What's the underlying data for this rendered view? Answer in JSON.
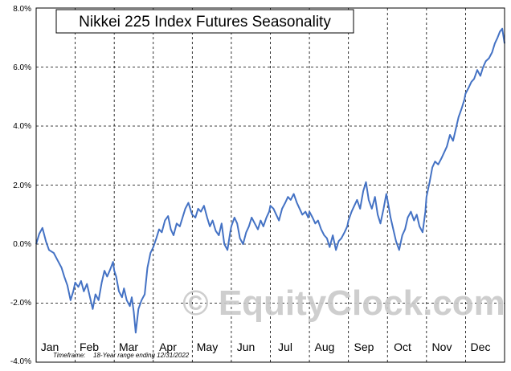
{
  "chart_data": {
    "type": "line",
    "title": "Nikkei 225 Index Futures Seasonality",
    "xlabel": "",
    "ylabel": "",
    "ylim": [
      -4.0,
      8.0
    ],
    "y_ticks": [
      "8.0%",
      "6.0%",
      "4.0%",
      "2.0%",
      "0.0%",
      "-2.0%",
      "-4.0%"
    ],
    "y_tick_values": [
      8,
      6,
      4,
      2,
      0,
      -2,
      -4
    ],
    "month_labels": [
      "Jan",
      "Feb",
      "Mar",
      "Apr",
      "May",
      "Jun",
      "Jul",
      "Aug",
      "Sep",
      "Oct",
      "Nov",
      "Dec"
    ],
    "grid": true,
    "footnote_label": "Timeframe:",
    "footnote_text": "18-Year range ending 12/31/2022",
    "watermark": "© EquityClock.com",
    "series": [
      {
        "color": "#4472c4",
        "x": [
          0,
          0.08,
          0.16,
          0.25,
          0.33,
          0.45,
          0.55,
          0.65,
          0.72,
          0.8,
          0.88,
          0.95,
          1.0,
          1.08,
          1.15,
          1.22,
          1.3,
          1.38,
          1.45,
          1.52,
          1.6,
          1.68,
          1.75,
          1.82,
          1.9,
          1.97,
          2.0,
          2.05,
          2.12,
          2.2,
          2.25,
          2.32,
          2.4,
          2.45,
          2.5,
          2.55,
          2.62,
          2.7,
          2.78,
          2.85,
          2.93,
          3.0,
          3.08,
          3.15,
          3.22,
          3.3,
          3.38,
          3.45,
          3.52,
          3.6,
          3.68,
          3.75,
          3.82,
          3.9,
          3.97,
          4.0,
          4.08,
          4.15,
          4.22,
          4.3,
          4.38,
          4.45,
          4.52,
          4.6,
          4.68,
          4.75,
          4.82,
          4.9,
          4.97,
          5.0,
          5.08,
          5.15,
          5.22,
          5.3,
          5.38,
          5.45,
          5.52,
          5.6,
          5.68,
          5.75,
          5.82,
          5.9,
          5.97,
          6.0,
          6.08,
          6.15,
          6.22,
          6.3,
          6.38,
          6.45,
          6.52,
          6.6,
          6.68,
          6.75,
          6.82,
          6.9,
          6.97,
          7.0,
          7.08,
          7.15,
          7.22,
          7.3,
          7.38,
          7.45,
          7.52,
          7.6,
          7.68,
          7.75,
          7.82,
          7.9,
          7.97,
          8.0,
          8.08,
          8.15,
          8.22,
          8.3,
          8.38,
          8.45,
          8.52,
          8.6,
          8.68,
          8.75,
          8.82,
          8.9,
          8.97,
          9.0,
          9.08,
          9.15,
          9.22,
          9.3,
          9.38,
          9.45,
          9.52,
          9.6,
          9.68,
          9.75,
          9.82,
          9.9,
          9.97,
          10.0,
          10.08,
          10.15,
          10.22,
          10.3,
          10.38,
          10.45,
          10.52,
          10.6,
          10.68,
          10.75,
          10.82,
          10.9,
          10.97,
          11.0,
          11.08,
          11.15,
          11.22,
          11.3,
          11.38,
          11.45,
          11.52,
          11.6,
          11.68,
          11.75,
          11.82,
          11.88,
          11.94,
          12.0
        ],
        "values": [
          0.0,
          0.35,
          0.55,
          0.1,
          -0.2,
          -0.3,
          -0.55,
          -0.8,
          -1.1,
          -1.4,
          -1.9,
          -1.6,
          -1.3,
          -1.45,
          -1.25,
          -1.6,
          -1.35,
          -1.8,
          -2.2,
          -1.7,
          -1.9,
          -1.3,
          -0.9,
          -1.1,
          -0.85,
          -0.6,
          -0.9,
          -1.1,
          -1.6,
          -1.8,
          -1.5,
          -1.9,
          -2.1,
          -1.8,
          -2.3,
          -3.0,
          -2.2,
          -1.9,
          -1.7,
          -0.8,
          -0.3,
          -0.1,
          0.2,
          0.5,
          0.4,
          0.8,
          0.95,
          0.5,
          0.3,
          0.7,
          0.6,
          0.9,
          1.2,
          1.4,
          1.1,
          1.0,
          0.9,
          1.2,
          1.1,
          1.3,
          0.9,
          0.6,
          0.8,
          0.45,
          0.3,
          0.7,
          0.0,
          -0.2,
          0.4,
          0.6,
          0.9,
          0.7,
          0.2,
          0.0,
          0.4,
          0.6,
          0.9,
          0.7,
          0.5,
          0.8,
          0.6,
          0.9,
          1.1,
          1.3,
          1.2,
          1.0,
          0.8,
          1.2,
          1.4,
          1.6,
          1.5,
          1.7,
          1.4,
          1.2,
          1.0,
          1.1,
          0.9,
          1.1,
          0.9,
          0.7,
          0.8,
          0.5,
          0.3,
          0.2,
          -0.1,
          0.3,
          -0.2,
          0.1,
          0.2,
          0.4,
          0.6,
          0.8,
          1.1,
          1.3,
          1.5,
          1.2,
          1.8,
          2.1,
          1.5,
          1.2,
          1.6,
          1.0,
          0.7,
          1.2,
          1.7,
          1.5,
          0.9,
          0.5,
          0.1,
          -0.2,
          0.3,
          0.5,
          0.9,
          1.1,
          0.8,
          1.0,
          0.6,
          0.4,
          1.1,
          1.6,
          2.1,
          2.6,
          2.8,
          2.7,
          2.9,
          3.1,
          3.3,
          3.7,
          3.5,
          3.9,
          4.3,
          4.6,
          4.9,
          5.1,
          5.3,
          5.5,
          5.6,
          5.9,
          5.7,
          6.0,
          6.2,
          6.3,
          6.5,
          6.8,
          7.0,
          7.2,
          7.3,
          6.8
        ]
      }
    ]
  }
}
